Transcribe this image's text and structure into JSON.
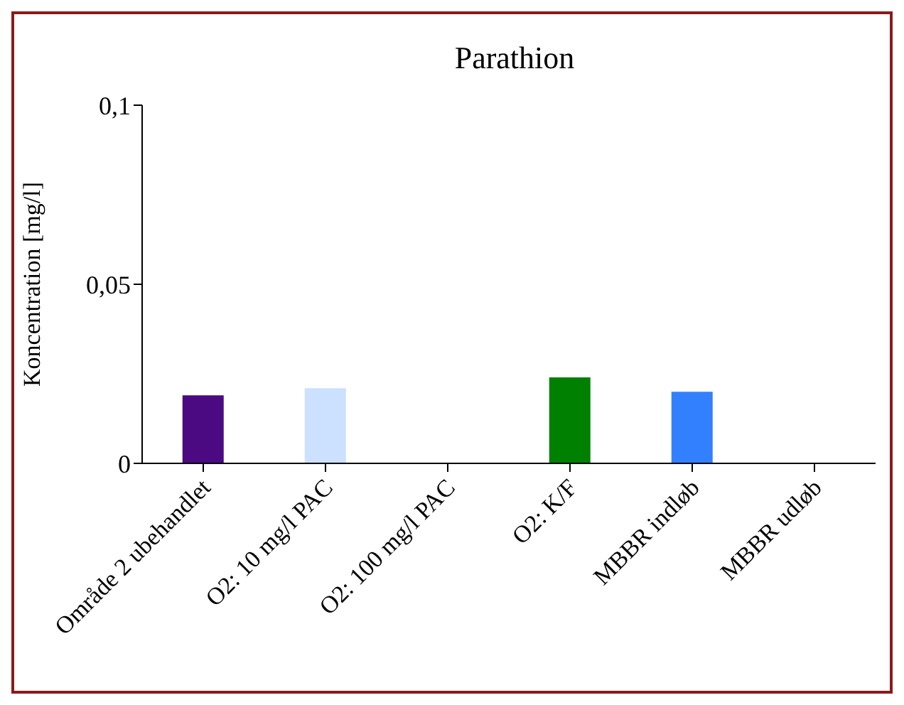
{
  "chart_data": {
    "type": "bar",
    "title": "Parathion",
    "ylabel": "Koncentration  [mg/l]",
    "categories": [
      "Område 2 ubehandlet",
      "O2: 10 mg/l PAC",
      "O2: 100 mg/l PAC",
      "O2: K/F",
      "MBBR indløb",
      "MBBR udløb"
    ],
    "values": [
      0.019,
      0.021,
      0,
      0.024,
      0.02,
      0
    ],
    "colors": [
      "#4b0a82",
      "#cce0ff",
      "#9999ff",
      "#008000",
      "#3380ff",
      "#99ccff"
    ],
    "ylim": [
      0,
      0.1
    ],
    "yticks": [
      {
        "value": 0,
        "label": "0"
      },
      {
        "value": 0.05,
        "label": "0,05"
      },
      {
        "value": 0.1,
        "label": "0,1"
      }
    ],
    "grid": false,
    "legend": false
  }
}
